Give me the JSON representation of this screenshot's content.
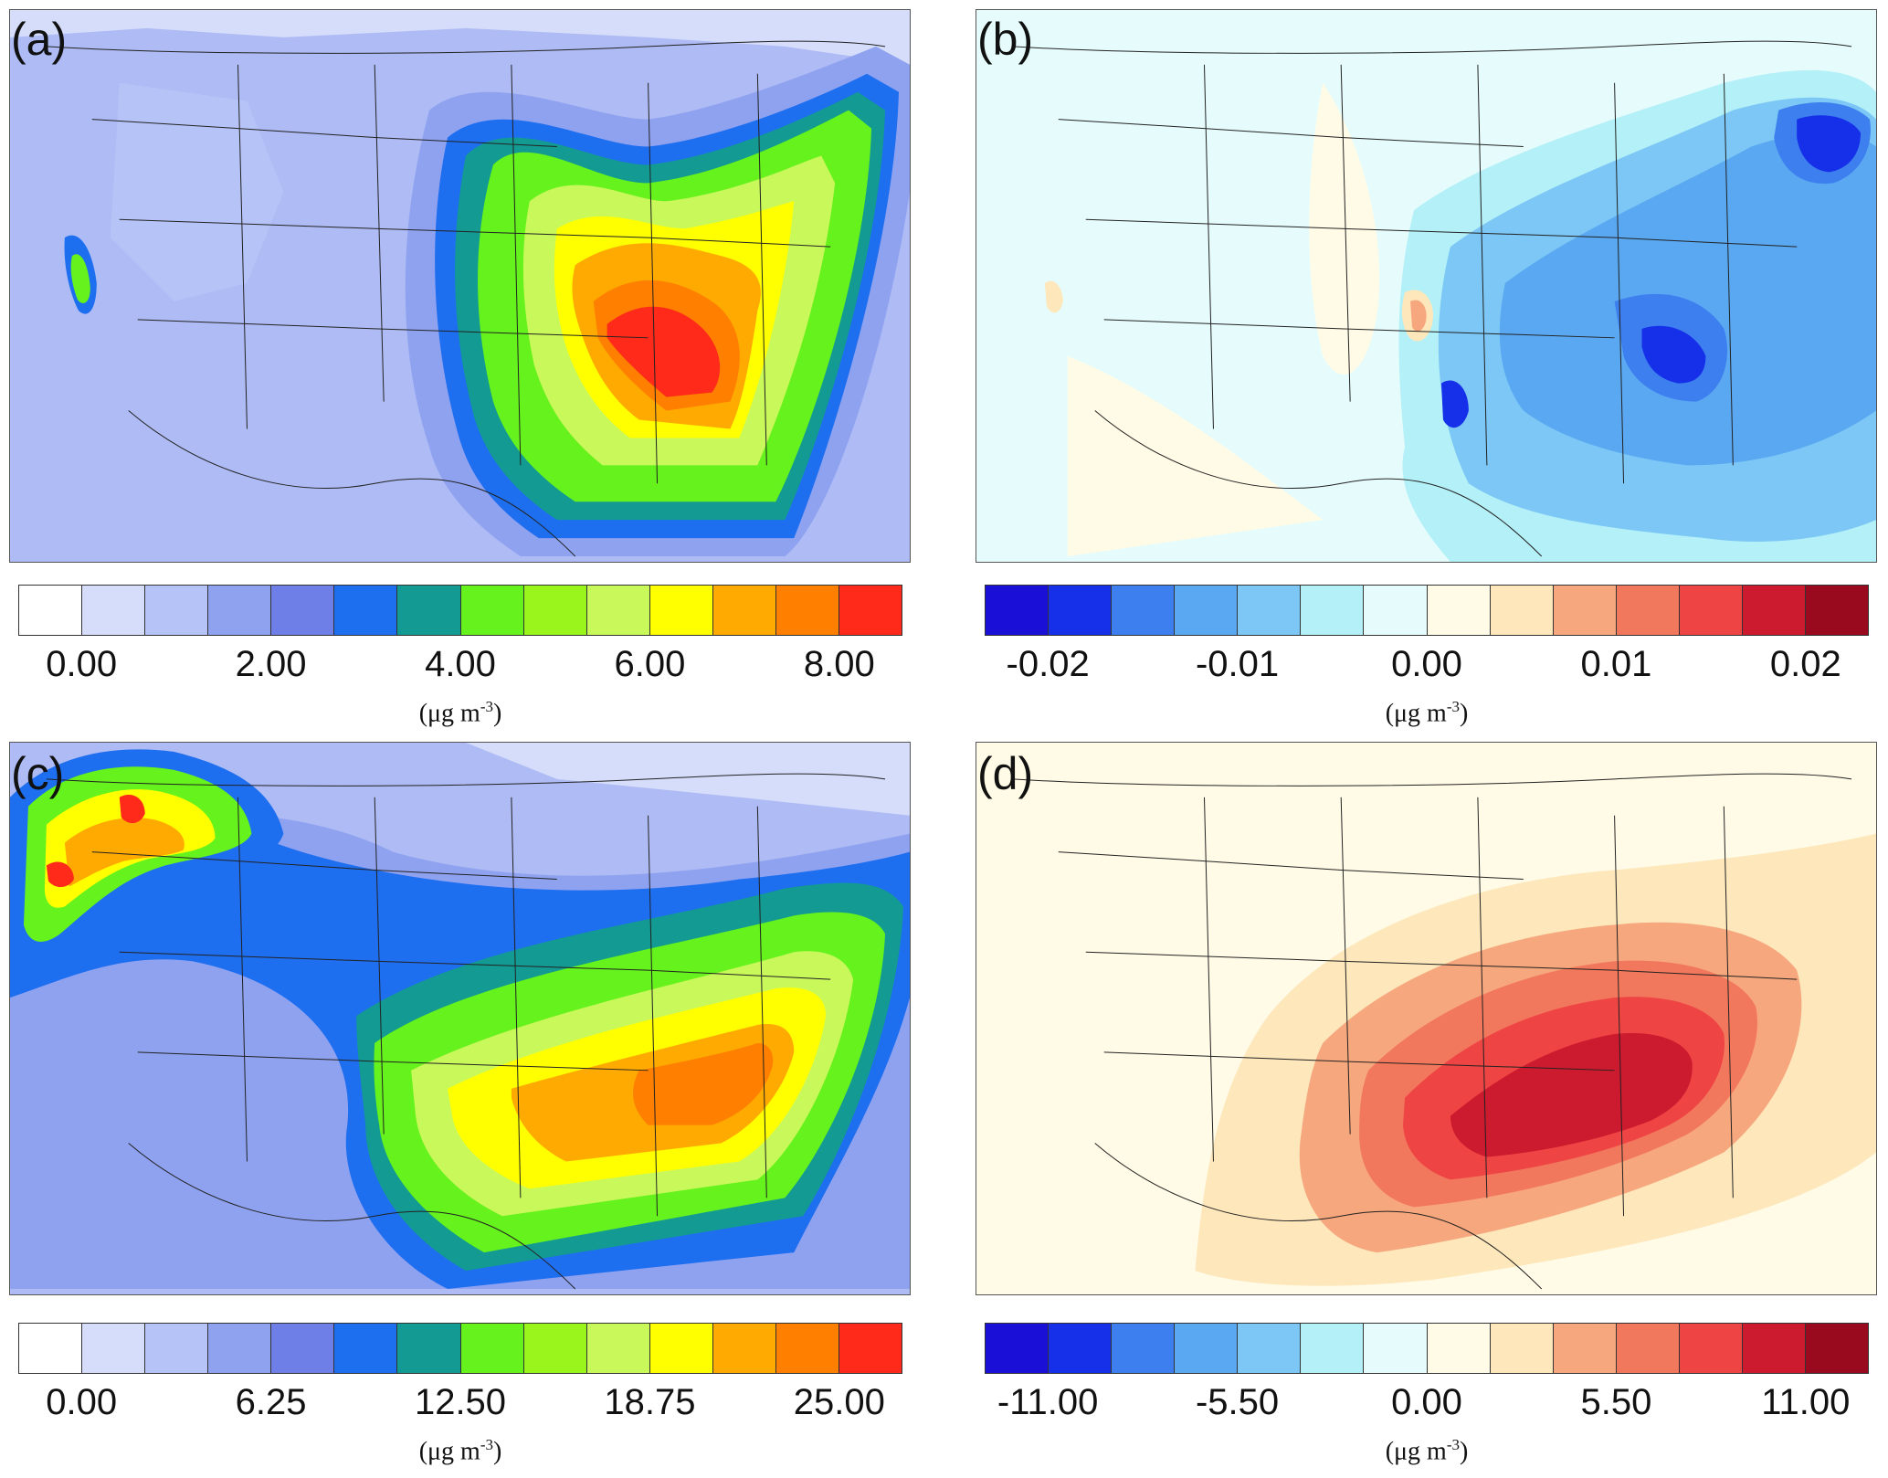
{
  "panels": [
    {
      "label": "(a)",
      "colorbar": {
        "colors": [
          "#ffffff",
          "#d5ddfa",
          "#b5c3f7",
          "#8fa2f0",
          "#6f7fe8",
          "#1e6ef0",
          "#139a92",
          "#66f21c",
          "#9af51c",
          "#c8f85a",
          "#ffff00",
          "#ffaa00",
          "#ff7f00",
          "#ff2a1a"
        ],
        "ticks": [
          "0.00",
          "2.00",
          "4.00",
          "6.00",
          "8.00"
        ],
        "unit_main": "(μg m",
        "unit_sup": "-3",
        "unit_end": ")"
      }
    },
    {
      "label": "(b)",
      "colorbar": {
        "colors": [
          "#1a0fd6",
          "#1530e8",
          "#3d7fee",
          "#5aa8f2",
          "#7cc7f5",
          "#b3f0f7",
          "#e6fcfc",
          "#fffbe6",
          "#fde7bb",
          "#f7a77e",
          "#f2785d",
          "#ef4444",
          "#cc1a2e",
          "#990a1e"
        ],
        "ticks": [
          "-0.02",
          "-0.01",
          "0.00",
          "0.01",
          "0.02"
        ],
        "unit_main": "(μg m",
        "unit_sup": "-3",
        "unit_end": ")"
      }
    },
    {
      "label": "(c)",
      "colorbar": {
        "colors": [
          "#ffffff",
          "#d5ddfa",
          "#b5c3f7",
          "#8fa2f0",
          "#6f7fe8",
          "#1e6ef0",
          "#139a92",
          "#66f21c",
          "#9af51c",
          "#c8f85a",
          "#ffff00",
          "#ffaa00",
          "#ff7f00",
          "#ff2a1a"
        ],
        "ticks": [
          "0.00",
          "6.25",
          "12.50",
          "18.75",
          "25.00"
        ],
        "unit_main": "(μg m",
        "unit_sup": "-3",
        "unit_end": ")"
      }
    },
    {
      "label": "(d)",
      "colorbar": {
        "colors": [
          "#1a0fd6",
          "#1530e8",
          "#3d7fee",
          "#5aa8f2",
          "#7cc7f5",
          "#b3f0f7",
          "#e6fcfc",
          "#fffbe6",
          "#fde7bb",
          "#f7a77e",
          "#f2785d",
          "#ef4444",
          "#cc1a2e",
          "#990a1e"
        ],
        "ticks": [
          "-11.00",
          "-5.50",
          "0.00",
          "5.50",
          "11.00"
        ],
        "unit_main": "(μg m",
        "unit_sup": "-3",
        "unit_end": ")"
      }
    }
  ]
}
